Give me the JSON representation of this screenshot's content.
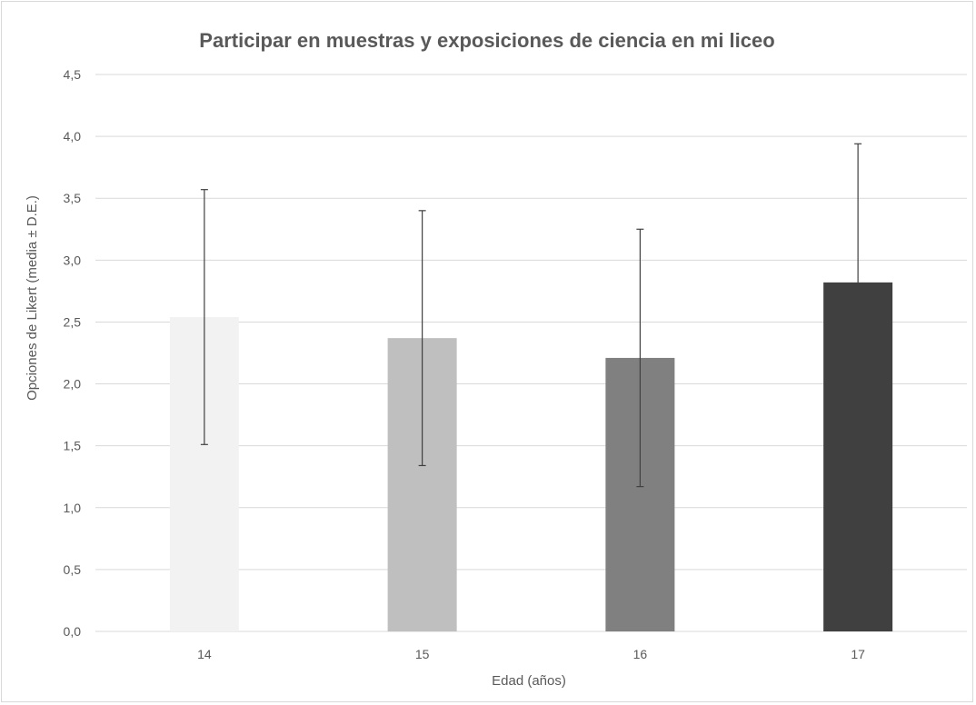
{
  "chart_data": {
    "type": "bar",
    "title": "Participar  en muestras y exposiciones de ciencia en mi liceo",
    "xlabel": "Edad (años)",
    "ylabel": "Opciones de Likert (media ± D.E.)",
    "categories": [
      "14",
      "15",
      "16",
      "17"
    ],
    "series": [
      {
        "values": [
          2.54,
          2.37,
          2.21,
          2.82
        ],
        "error": [
          1.03,
          1.03,
          1.04,
          1.12
        ],
        "colors": [
          "#f2f2f2",
          "#bfbfbf",
          "#808080",
          "#404040"
        ]
      }
    ],
    "ylim": [
      0,
      4.5
    ],
    "yticks": [
      "0,0",
      "0,5",
      "1,0",
      "1,5",
      "2,0",
      "2,5",
      "3,0",
      "3,5",
      "4,0",
      "4,5"
    ],
    "grid": true,
    "legend": "none"
  }
}
